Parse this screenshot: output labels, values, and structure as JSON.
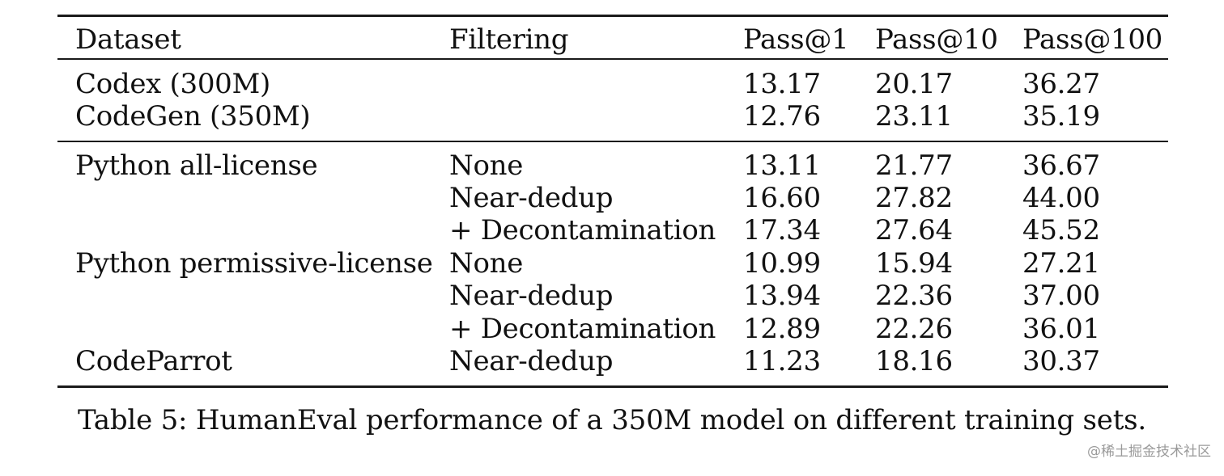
{
  "table": {
    "headers": {
      "dataset": "Dataset",
      "filtering": "Filtering",
      "pass1": "Pass@1",
      "pass10": "Pass@10",
      "pass100": "Pass@100"
    },
    "baseline_rows": [
      {
        "dataset": "Codex (300M)",
        "filtering": "",
        "pass1": "13.17",
        "pass10": "20.17",
        "pass100": "36.27"
      },
      {
        "dataset": "CodeGen (350M)",
        "filtering": "",
        "pass1": "12.76",
        "pass10": "23.11",
        "pass100": "35.19"
      }
    ],
    "rows": [
      {
        "dataset": "Python all-license",
        "filtering": "None",
        "pass1": "13.11",
        "pass10": "21.77",
        "pass100": "36.67"
      },
      {
        "dataset": "",
        "filtering": "Near-dedup",
        "pass1": "16.60",
        "pass10": "27.82",
        "pass100": "44.00"
      },
      {
        "dataset": "",
        "filtering": "+ Decontamination",
        "pass1": "17.34",
        "pass10": "27.64",
        "pass100": "45.52"
      },
      {
        "dataset": "Python permissive-license",
        "filtering": "None",
        "pass1": "10.99",
        "pass10": "15.94",
        "pass100": "27.21"
      },
      {
        "dataset": "",
        "filtering": "Near-dedup",
        "pass1": "13.94",
        "pass10": "22.36",
        "pass100": "37.00"
      },
      {
        "dataset": "",
        "filtering": "+ Decontamination",
        "pass1": "12.89",
        "pass10": "22.26",
        "pass100": "36.01"
      },
      {
        "dataset": "CodeParrot",
        "filtering": "Near-dedup",
        "pass1": "11.23",
        "pass10": "18.16",
        "pass100": "30.37"
      }
    ]
  },
  "caption": "Table 5: HumanEval performance of a 350M model on different training sets.",
  "watermark": "@稀土掘金技术社区"
}
